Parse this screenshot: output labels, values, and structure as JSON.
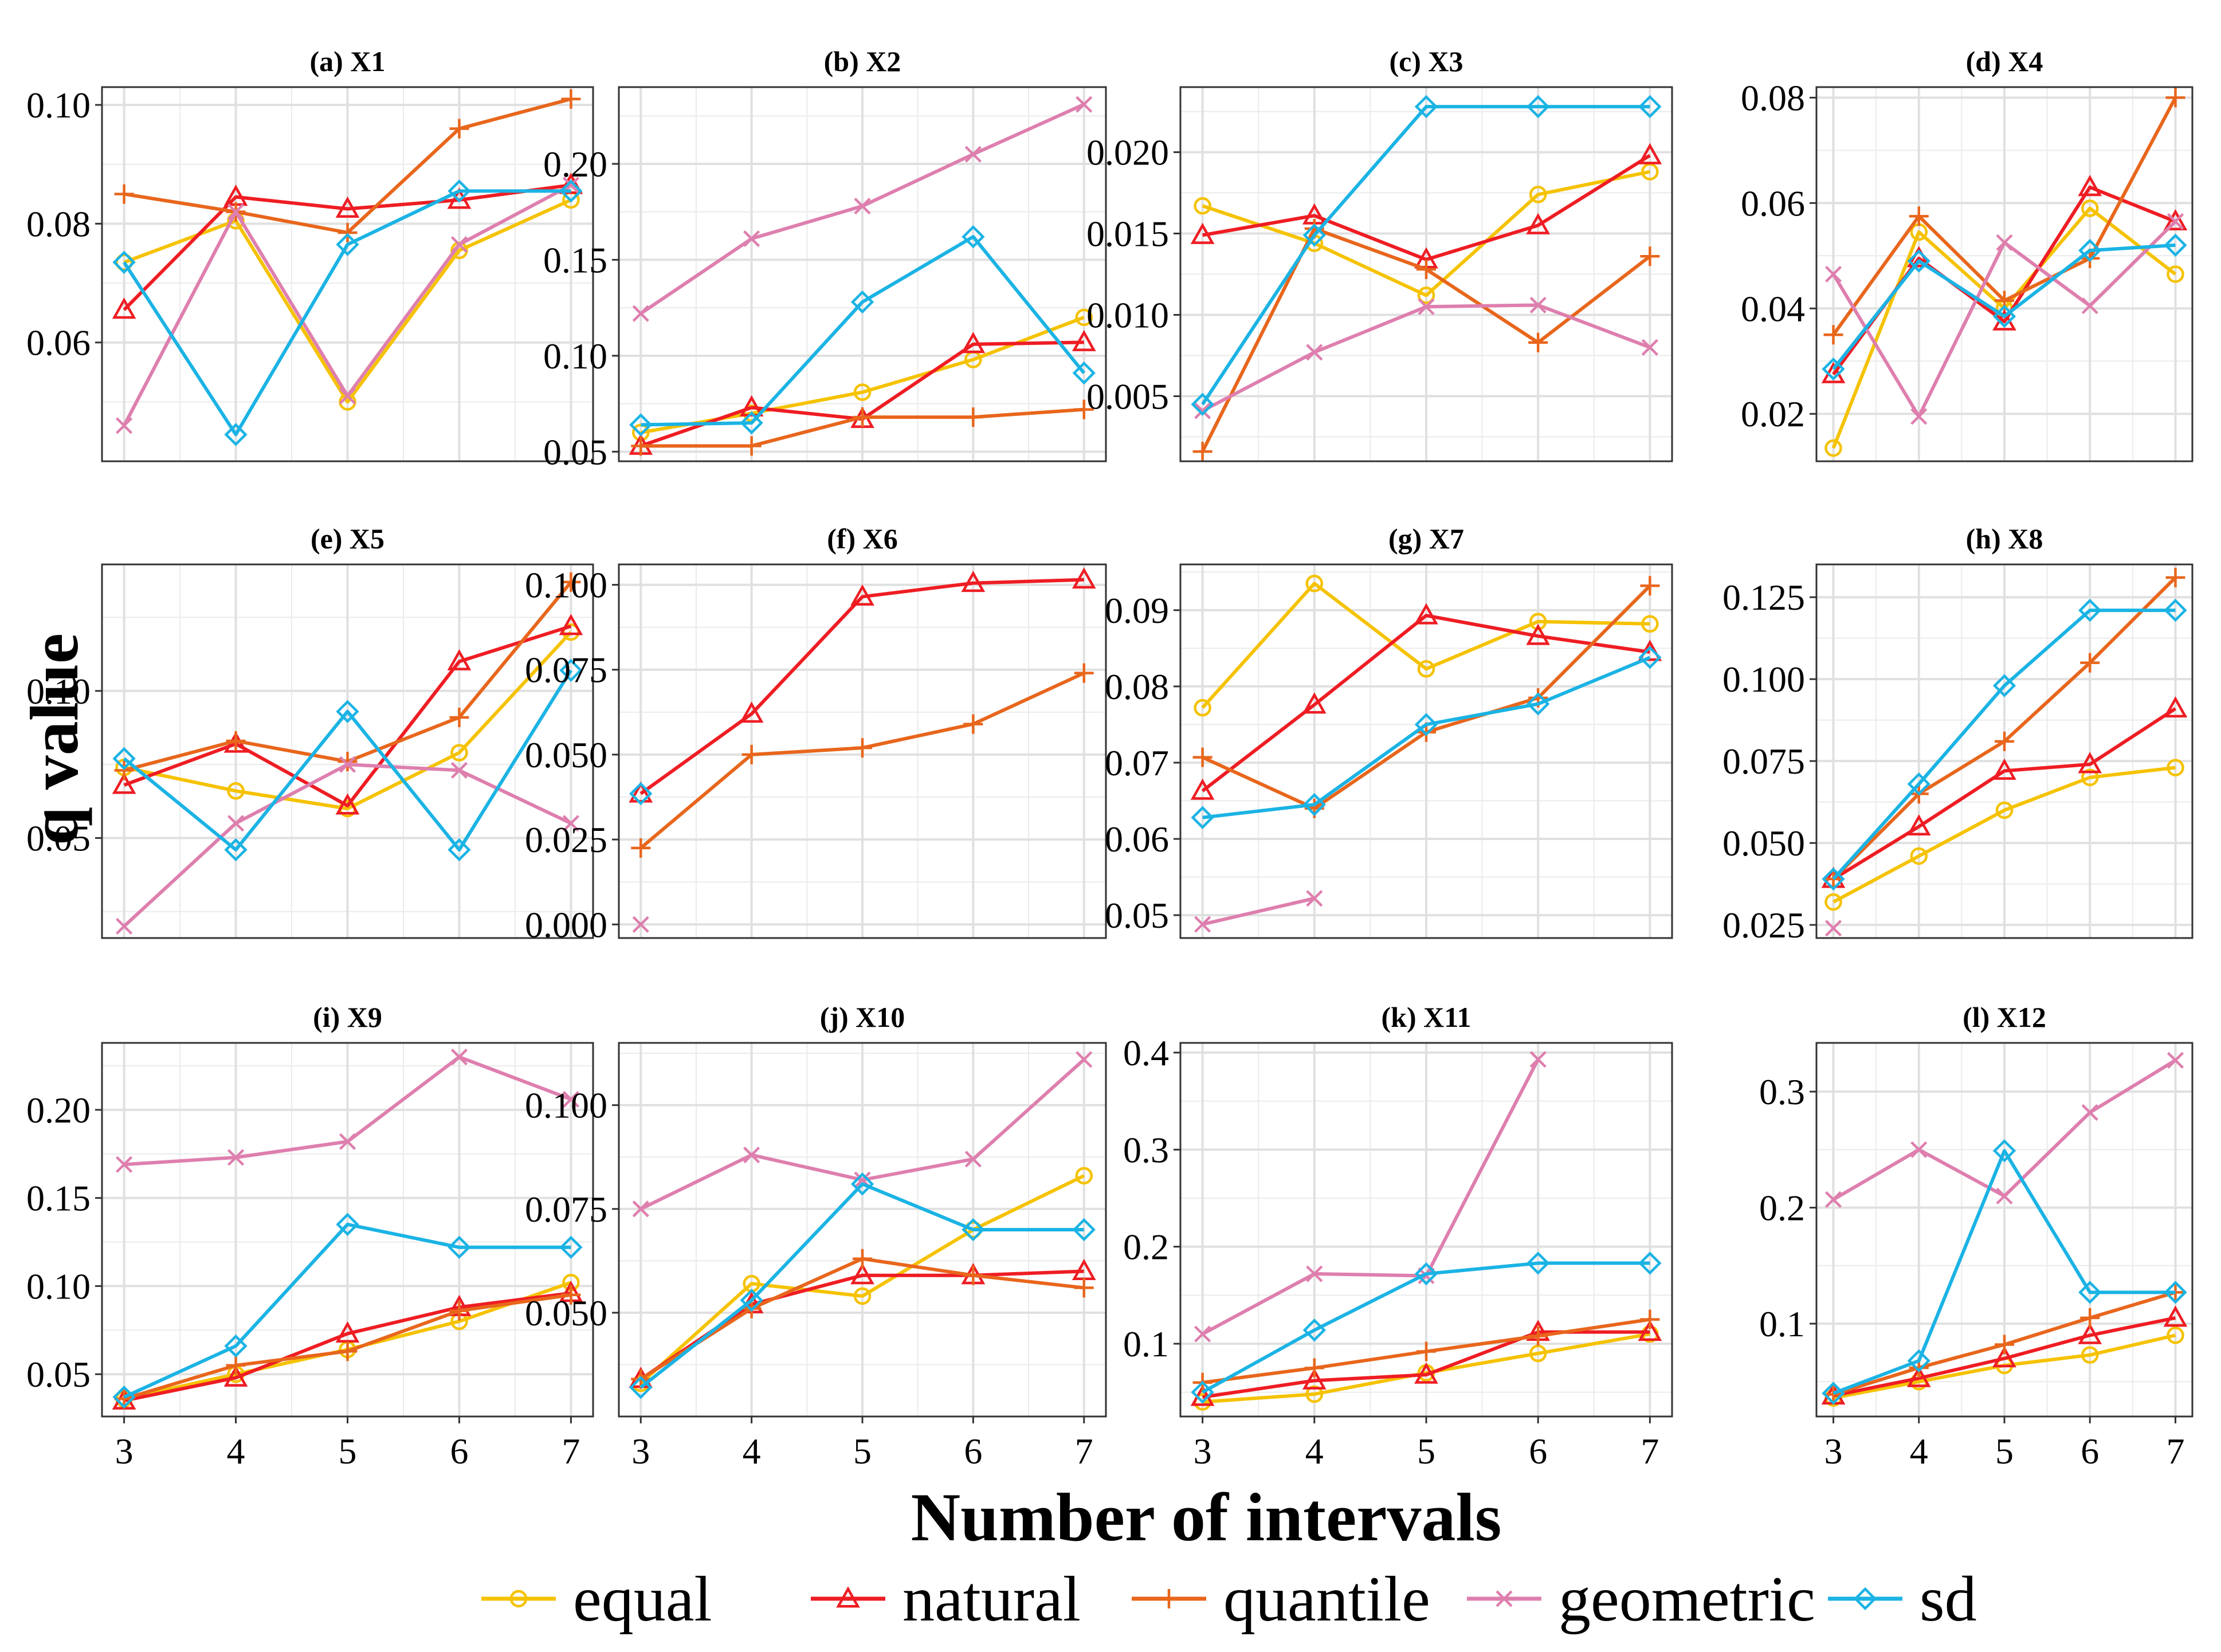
{
  "chart_data": {
    "type": "line",
    "xlabel": "Number of intervals",
    "ylabel": "q value",
    "x": [
      3,
      4,
      5,
      6,
      7
    ],
    "series_styles": [
      {
        "key": "equal",
        "name": "equal",
        "color": "#F5C200",
        "marker": "circle"
      },
      {
        "key": "natural",
        "name": "natural",
        "color": "#EE1D23",
        "marker": "triangle"
      },
      {
        "key": "quantile",
        "name": "quantile",
        "color": "#E8661C",
        "marker": "plus"
      },
      {
        "key": "geometric",
        "name": "geometric",
        "color": "#DE7FAE",
        "marker": "cross"
      },
      {
        "key": "sd",
        "name": "sd",
        "color": "#1BB3E4",
        "marker": "diamond"
      }
    ],
    "panels": [
      {
        "title": "(a) X1",
        "ylim": [
          0.04,
          0.103
        ],
        "yticks": [
          0.06,
          0.08,
          0.1
        ],
        "ytick_labels": [
          "0.06",
          "0.08",
          "0.10"
        ],
        "series": {
          "equal": [
            0.0735,
            0.0805,
            0.05,
            0.0755,
            0.084
          ],
          "natural": [
            0.0655,
            0.0845,
            0.0825,
            0.084,
            0.0865
          ],
          "quantile": [
            0.085,
            0.082,
            0.0785,
            0.096,
            0.101
          ],
          "geometric": [
            0.046,
            0.082,
            0.051,
            0.0765,
            0.0865
          ],
          "sd": [
            0.0735,
            0.0445,
            0.0765,
            0.0855,
            0.0855
          ]
        }
      },
      {
        "title": "(b) X2",
        "ylim": [
          0.045,
          0.24
        ],
        "yticks": [
          0.05,
          0.1,
          0.15,
          0.2
        ],
        "ytick_labels": [
          "0.05",
          "0.10",
          "0.15",
          "0.20"
        ],
        "series": {
          "equal": [
            0.06,
            0.07,
            0.081,
            0.098,
            0.12
          ],
          "natural": [
            0.053,
            0.073,
            0.067,
            0.106,
            0.107
          ],
          "quantile": [
            0.053,
            0.053,
            0.068,
            0.068,
            0.072
          ],
          "geometric": [
            0.122,
            0.161,
            0.178,
            0.205,
            0.231
          ],
          "sd": [
            0.064,
            0.065,
            0.128,
            0.162,
            0.091
          ]
        }
      },
      {
        "title": "(c) X3",
        "ylim": [
          0.001,
          0.024
        ],
        "yticks": [
          0.005,
          0.01,
          0.015,
          0.02
        ],
        "ytick_labels": [
          "0.005",
          "0.010",
          "0.015",
          "0.020"
        ],
        "series": {
          "equal": [
            0.0167,
            0.0144,
            0.0112,
            0.0174,
            0.0188
          ],
          "natural": [
            0.0149,
            0.0161,
            0.0134,
            0.0155,
            0.0198
          ],
          "quantile": [
            0.0016,
            0.0153,
            0.0128,
            0.0083,
            0.0136
          ],
          "geometric": [
            0.0041,
            0.0077,
            0.0105,
            0.0106,
            0.008
          ],
          "sd": [
            0.0045,
            0.0149,
            0.0228,
            0.0228,
            0.0228
          ]
        }
      },
      {
        "title": "(d) X4",
        "ylim": [
          0.011,
          0.082
        ],
        "yticks": [
          0.02,
          0.04,
          0.06,
          0.08
        ],
        "ytick_labels": [
          "0.02",
          "0.04",
          "0.06",
          "0.08"
        ],
        "series": {
          "equal": [
            0.0135,
            0.0545,
            0.04,
            0.059,
            0.0465
          ],
          "natural": [
            0.0275,
            0.0495,
            0.0375,
            0.063,
            0.0565
          ],
          "quantile": [
            0.035,
            0.0575,
            0.0415,
            0.0495,
            0.08
          ],
          "geometric": [
            0.0465,
            0.0195,
            0.0525,
            0.0405,
            0.0565
          ],
          "sd": [
            0.0285,
            0.049,
            0.0385,
            0.051,
            0.052
          ]
        }
      },
      {
        "title": "(e) X5",
        "ylim": [
          0.016,
          0.143
        ],
        "yticks": [
          0.05,
          0.1
        ],
        "ytick_labels": [
          "0.05",
          "0.10"
        ],
        "series": {
          "equal": [
            0.074,
            0.066,
            0.06,
            0.079,
            0.12
          ],
          "natural": [
            0.068,
            0.082,
            0.061,
            0.11,
            0.122
          ],
          "quantile": [
            0.073,
            0.083,
            0.076,
            0.091,
            0.137
          ],
          "geometric": [
            0.02,
            0.055,
            0.075,
            0.073,
            0.055
          ],
          "sd": [
            0.077,
            0.046,
            0.093,
            0.046,
            0.107
          ]
        }
      },
      {
        "title": "(f) X6",
        "ylim": [
          -0.004,
          0.106
        ],
        "yticks": [
          0.0,
          0.025,
          0.05,
          0.075,
          0.1
        ],
        "ytick_labels": [
          "0.000",
          "0.025",
          "0.050",
          "0.075",
          "0.100"
        ],
        "series": {
          "equal": [
            null,
            null,
            null,
            null,
            null
          ],
          "natural": [
            0.0385,
            0.062,
            0.0965,
            0.1005,
            0.1015
          ],
          "quantile": [
            0.0225,
            0.05,
            0.052,
            0.059,
            0.074
          ],
          "geometric": [
            0.0,
            null,
            null,
            null,
            null
          ],
          "sd": [
            0.0385,
            null,
            null,
            null,
            null
          ]
        }
      },
      {
        "title": "(g) X7",
        "ylim": [
          0.047,
          0.096
        ],
        "yticks": [
          0.05,
          0.06,
          0.07,
          0.08,
          0.09
        ],
        "ytick_labels": [
          "0.05",
          "0.06",
          "0.07",
          "0.08",
          "0.09"
        ],
        "series": {
          "equal": [
            0.0772,
            0.0935,
            0.0823,
            0.0885,
            0.0882
          ],
          "natural": [
            0.0663,
            0.0776,
            0.0893,
            0.0866,
            0.0845
          ],
          "quantile": [
            0.0707,
            0.064,
            0.074,
            0.0785,
            0.0932
          ],
          "geometric": [
            0.0488,
            0.0522,
            null,
            null,
            null
          ],
          "sd": [
            0.0628,
            0.0645,
            0.075,
            0.0777,
            0.0838
          ]
        }
      },
      {
        "title": "(h) X8",
        "ylim": [
          0.021,
          0.135
        ],
        "yticks": [
          0.025,
          0.05,
          0.075,
          0.1,
          0.125
        ],
        "ytick_labels": [
          "0.025",
          "0.050",
          "0.075",
          "0.100",
          "0.125"
        ],
        "series": {
          "equal": [
            0.032,
            0.046,
            0.06,
            0.07,
            0.073
          ],
          "natural": [
            0.039,
            0.055,
            0.072,
            0.074,
            0.091
          ],
          "quantile": [
            0.039,
            0.065,
            0.081,
            0.105,
            0.131
          ],
          "geometric": [
            0.024,
            null,
            null,
            null,
            null
          ],
          "sd": [
            0.039,
            0.068,
            0.098,
            0.121,
            0.121
          ]
        }
      },
      {
        "title": "(i) X9",
        "ylim": [
          0.026,
          0.238
        ],
        "yticks": [
          0.05,
          0.1,
          0.15,
          0.2
        ],
        "ytick_labels": [
          "0.05",
          "0.10",
          "0.15",
          "0.20"
        ],
        "series": {
          "equal": [
            0.036,
            0.05,
            0.064,
            0.08,
            0.102
          ],
          "natural": [
            0.035,
            0.048,
            0.073,
            0.088,
            0.096
          ],
          "quantile": [
            0.036,
            0.055,
            0.063,
            0.086,
            0.095
          ],
          "geometric": [
            0.169,
            0.173,
            0.182,
            0.23,
            0.206
          ],
          "sd": [
            0.037,
            0.066,
            0.135,
            0.122,
            0.122
          ]
        }
      },
      {
        "title": "(j) X10",
        "ylim": [
          0.025,
          0.115
        ],
        "yticks": [
          0.05,
          0.075,
          0.1
        ],
        "ytick_labels": [
          "0.050",
          "0.075",
          "0.100"
        ],
        "series": {
          "equal": [
            0.033,
            0.057,
            0.054,
            0.07,
            0.083
          ],
          "natural": [
            0.034,
            0.052,
            0.059,
            0.059,
            0.06
          ],
          "quantile": [
            0.034,
            0.051,
            0.063,
            0.059,
            0.056
          ],
          "geometric": [
            0.075,
            0.088,
            0.082,
            0.087,
            0.111
          ],
          "sd": [
            0.032,
            0.053,
            0.081,
            0.07,
            0.07
          ]
        }
      },
      {
        "title": "(k) X11",
        "ylim": [
          0.025,
          0.41
        ],
        "yticks": [
          0.1,
          0.2,
          0.3,
          0.4
        ],
        "ytick_labels": [
          "0.1",
          "0.2",
          "0.3",
          "0.4"
        ],
        "series": {
          "equal": [
            0.04,
            0.048,
            0.07,
            0.09,
            0.11
          ],
          "natural": [
            0.045,
            0.062,
            0.068,
            0.112,
            0.112
          ],
          "quantile": [
            0.06,
            0.075,
            0.092,
            0.108,
            0.125
          ],
          "geometric": [
            0.11,
            0.172,
            0.17,
            0.393,
            null
          ],
          "sd": [
            0.05,
            0.114,
            0.172,
            0.183,
            0.183
          ]
        }
      },
      {
        "title": "(l) X12",
        "ylim": [
          0.02,
          0.342
        ],
        "yticks": [
          0.1,
          0.2,
          0.3
        ],
        "ytick_labels": [
          "0.1",
          "0.2",
          "0.3"
        ],
        "series": {
          "equal": [
            0.036,
            0.05,
            0.064,
            0.073,
            0.09
          ],
          "natural": [
            0.038,
            0.053,
            0.07,
            0.09,
            0.105
          ],
          "quantile": [
            0.039,
            0.062,
            0.082,
            0.105,
            0.127
          ],
          "geometric": [
            0.207,
            0.25,
            0.21,
            0.282,
            0.327
          ],
          "sd": [
            0.04,
            0.068,
            0.249,
            0.127,
            0.127
          ]
        }
      }
    ]
  }
}
